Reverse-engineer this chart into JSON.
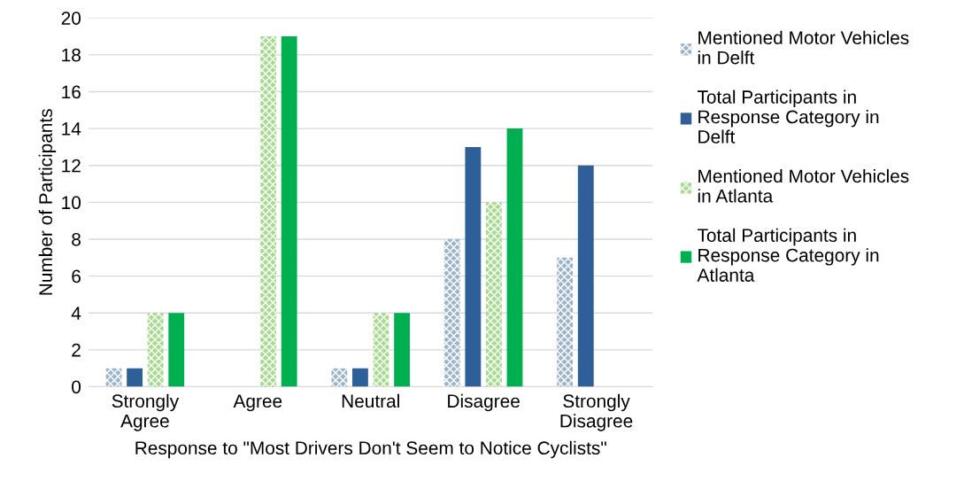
{
  "chart_data": {
    "type": "bar",
    "xlabel": "Response to \"Most Drivers Don't Seem to Notice Cyclists\"",
    "ylabel": "Number of Participants",
    "categories": [
      "Strongly Agree",
      "Agree",
      "Neutral",
      "Disagree",
      "Strongly Disagree"
    ],
    "series": [
      {
        "name": "Mentioned Motor Vehicles in Delft",
        "color": "#9db4cf",
        "values": [
          1,
          0,
          1,
          8,
          7
        ]
      },
      {
        "name": "Total Participants in Response Category in Delft",
        "color": "#2f5f98",
        "values": [
          1,
          0,
          1,
          13,
          12
        ]
      },
      {
        "name": "Mentioned Motor Vehicles in Atlanta",
        "color": "#a6dc8e",
        "values": [
          4,
          19,
          4,
          10,
          0
        ]
      },
      {
        "name": "Total Participants in Response Category in Atlanta",
        "color": "#00b050",
        "values": [
          4,
          19,
          4,
          14,
          0
        ]
      }
    ],
    "ylim": [
      0,
      20
    ],
    "yticks": [
      0,
      2,
      4,
      6,
      8,
      10,
      12,
      14,
      16,
      18,
      20
    ],
    "grid": "y",
    "legend": "right"
  }
}
